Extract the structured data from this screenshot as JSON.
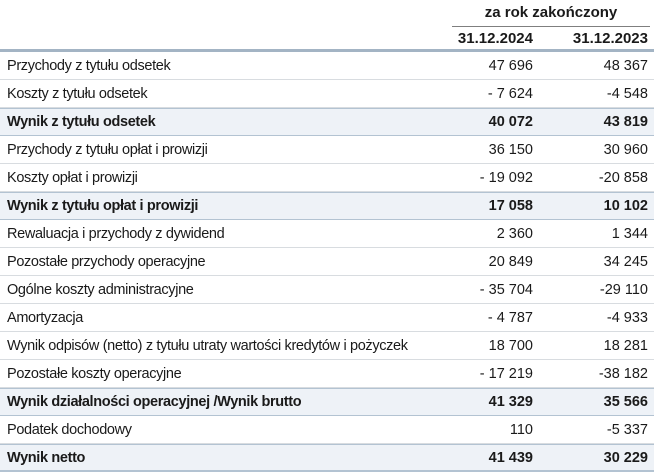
{
  "table": {
    "period_header": "za rok zakończony",
    "columns": [
      "31.12.2024",
      "31.12.2023"
    ],
    "rows": [
      {
        "label": "Przychody z tytułu odsetek",
        "values": [
          "47 696",
          "48 367"
        ],
        "bold": false
      },
      {
        "label": "Koszty z tytułu odsetek",
        "values": [
          "- 7 624",
          "-4 548"
        ],
        "bold": false
      },
      {
        "label": "Wynik z tytułu odsetek",
        "values": [
          "40 072",
          "43 819"
        ],
        "bold": true
      },
      {
        "label": "Przychody z tytułu opłat i prowizji",
        "values": [
          "36 150",
          "30 960"
        ],
        "bold": false
      },
      {
        "label": "Koszty opłat i prowizji",
        "values": [
          "- 19 092",
          "-20 858"
        ],
        "bold": false
      },
      {
        "label": "Wynik z tytułu opłat i prowizji",
        "values": [
          "17 058",
          "10 102"
        ],
        "bold": true
      },
      {
        "label": "Rewaluacja i przychody z dywidend",
        "values": [
          "2 360",
          "1 344"
        ],
        "bold": false
      },
      {
        "label": "Pozostałe przychody operacyjne",
        "values": [
          "20 849",
          "34 245"
        ],
        "bold": false
      },
      {
        "label": "Ogólne koszty administracyjne",
        "values": [
          "- 35 704",
          "-29 110"
        ],
        "bold": false
      },
      {
        "label": "Amortyzacja",
        "values": [
          "- 4 787",
          "-4 933"
        ],
        "bold": false
      },
      {
        "label": "Wynik odpisów (netto) z tytułu utraty wartości kredytów i pożyczek",
        "values": [
          "18 700",
          "18 281"
        ],
        "bold": false
      },
      {
        "label": "Pozostałe koszty operacyjne",
        "values": [
          "- 17 219",
          "-38 182"
        ],
        "bold": false
      },
      {
        "label": "Wynik działalności operacyjnej /Wynik brutto",
        "values": [
          "41 329",
          "35 566"
        ],
        "bold": true
      },
      {
        "label": "Podatek dochodowy",
        "values": [
          "110",
          "-5 337"
        ],
        "bold": false
      },
      {
        "label": "Wynik netto",
        "values": [
          "41 439",
          "30 229"
        ],
        "bold": true
      }
    ],
    "colors": {
      "text": "#1a1a1a",
      "total_row_bg": "#eef2f7",
      "total_row_border": "#b3c3d2",
      "row_separator": "#d8dce0",
      "period_header_rule": "#7f7f7f",
      "table_rule": "#a3b4c4"
    }
  }
}
